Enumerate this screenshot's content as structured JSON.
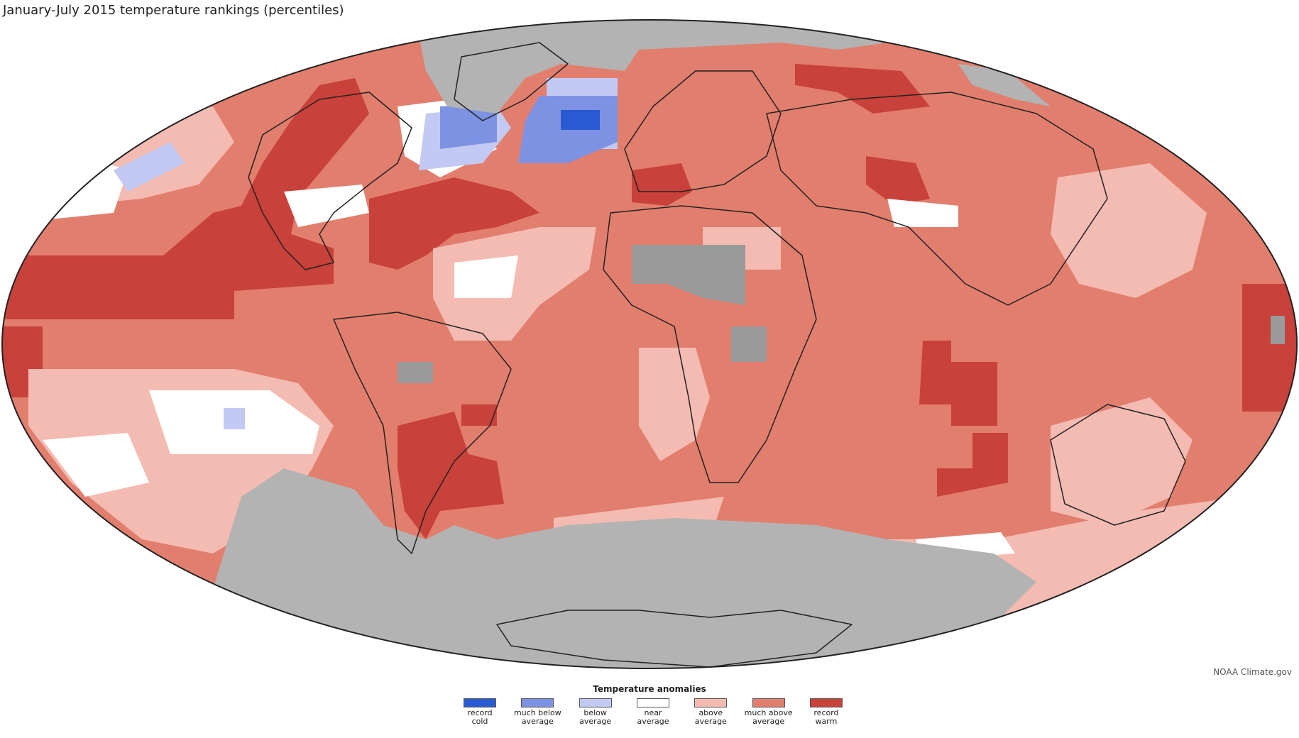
{
  "title": "January-July 2015 temperature rankings (percentiles)",
  "credit": "NOAA Climate.gov",
  "legend": {
    "title": "Temperature anomalies",
    "items": [
      {
        "label": "record\ncold",
        "color": "#2a5ad3"
      },
      {
        "label": "much below\naverage",
        "color": "#7d92e3"
      },
      {
        "label": "below\naverage",
        "color": "#c2c9f2"
      },
      {
        "label": "near\naverage",
        "color": "#ffffff"
      },
      {
        "label": "above\naverage",
        "color": "#f3bbb2"
      },
      {
        "label": "much above\naverage",
        "color": "#e27e6d"
      },
      {
        "label": "record\nwarm",
        "color": "#c8413a"
      }
    ]
  },
  "colors": {
    "no_data": "#b3b3b3",
    "land_no_data": "#9a9a9a",
    "outline": "#222222"
  }
}
